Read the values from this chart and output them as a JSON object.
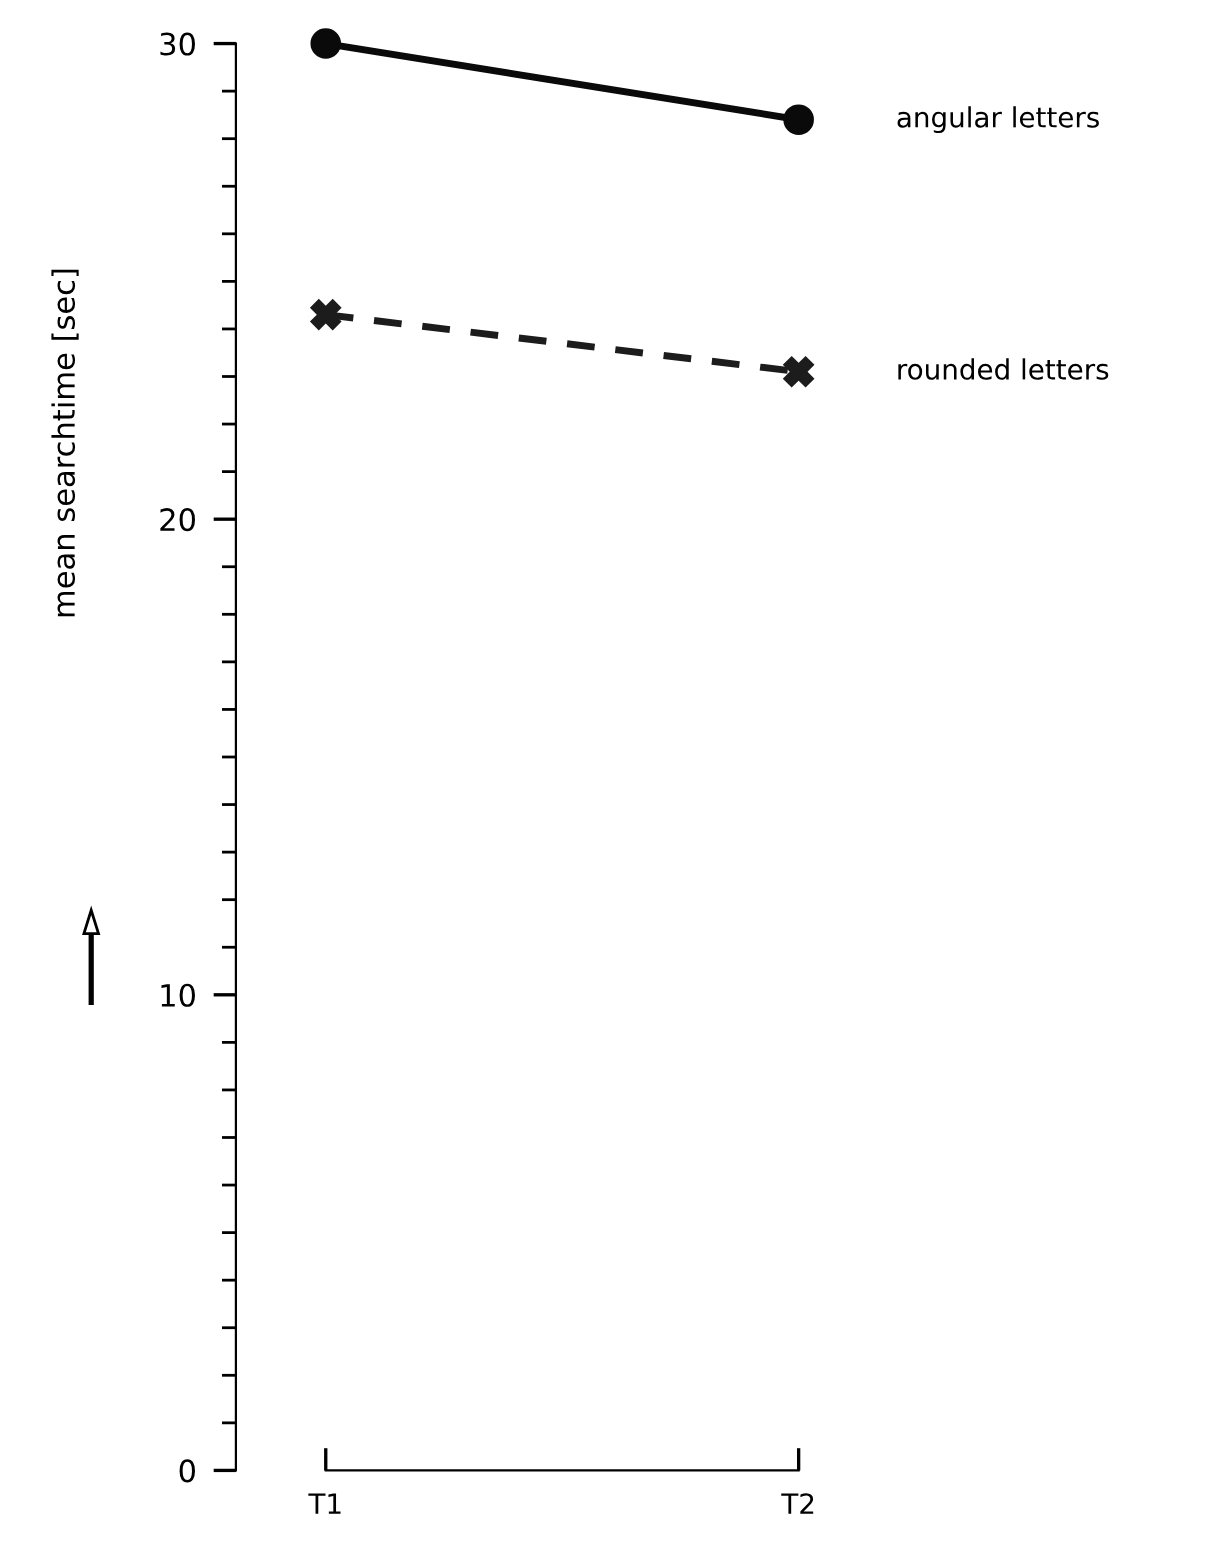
{
  "chart_data": {
    "type": "line",
    "ylabel": "mean searchtime [sec]",
    "categories": [
      "T1",
      "T2"
    ],
    "series": [
      {
        "name": "angular letters",
        "color": "#0a0a0a",
        "values": [
          30,
          28.4
        ],
        "marker": "circle",
        "line_style": "solid"
      },
      {
        "name": "rounded letters",
        "color": "#1c1c1c",
        "values": [
          24.3,
          23.1
        ],
        "marker": "cross",
        "line_style": "dashed"
      }
    ],
    "ylim": [
      0,
      30
    ],
    "yticks": [
      0,
      10,
      20,
      30
    ],
    "grid": false,
    "legend": false
  }
}
